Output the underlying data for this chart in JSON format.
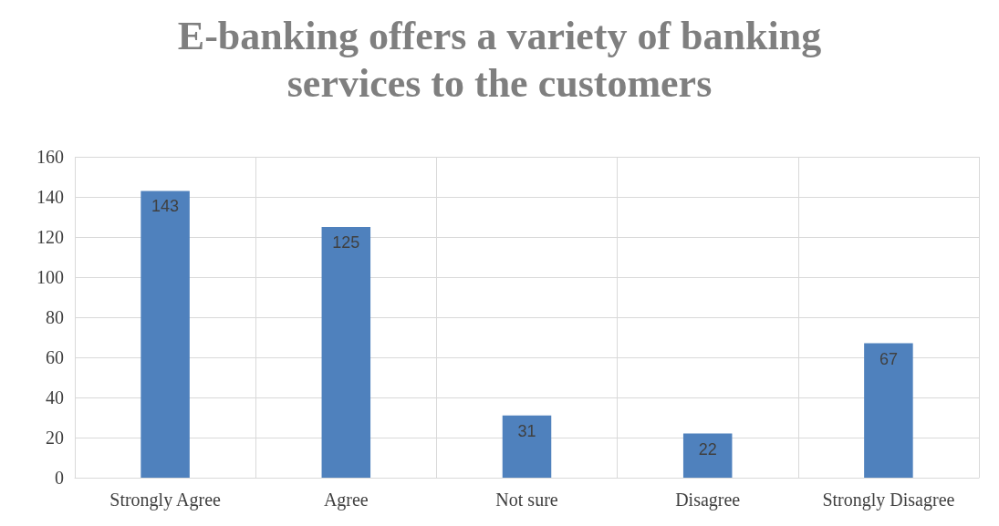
{
  "chart_data": {
    "type": "bar",
    "title": "E-banking offers a variety of banking\nservices to the customers",
    "categories": [
      "Strongly Agree",
      "Agree",
      "Not sure",
      "Disagree",
      "Strongly Disagree"
    ],
    "values": [
      143,
      125,
      31,
      22,
      67
    ],
    "color": "#4f81bd",
    "ylim": [
      0,
      160
    ],
    "yticks": [
      0,
      20,
      40,
      60,
      80,
      100,
      120,
      140,
      160
    ],
    "grid": true,
    "data_labels": true
  }
}
